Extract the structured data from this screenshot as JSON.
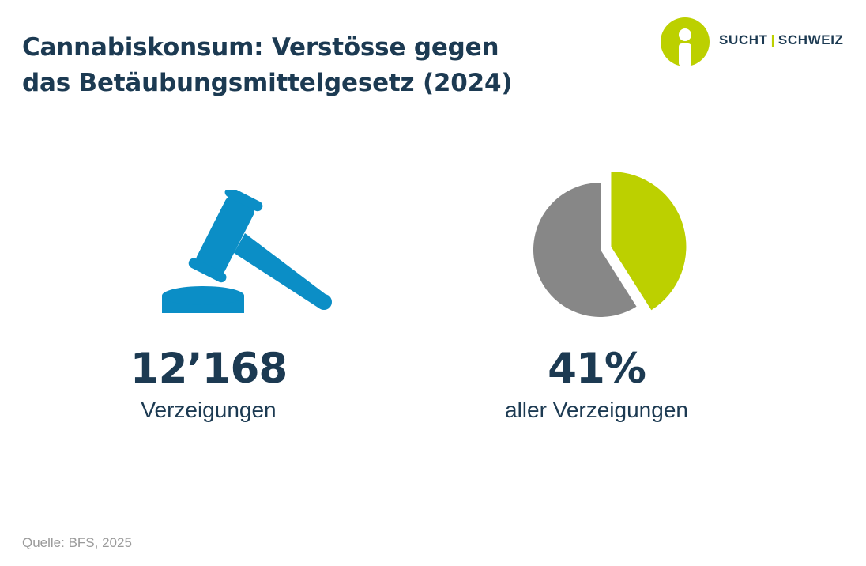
{
  "title": {
    "line1": "Cannabiskonsum: Verstösse gegen",
    "line2": "das Betäubungsmittelgesetz (2024)"
  },
  "logo": {
    "left": "SUCHT",
    "separator": "|",
    "right": "SCHWEIZ",
    "icon": "person-in-circle-icon",
    "color": "#bcd000"
  },
  "stats": {
    "reports": {
      "value": "12’168",
      "label": "Verzeigungen",
      "icon": "gavel-icon",
      "color": "#0b8ec6"
    },
    "share": {
      "value": "41%",
      "label": "aller Verzeigungen"
    }
  },
  "source": "Quelle: BFS, 2025",
  "chart_data": {
    "type": "pie",
    "slices": [
      {
        "value": 41,
        "color": "#bcd000",
        "exploded": true
      },
      {
        "value": 59,
        "color": "#878787"
      }
    ]
  }
}
